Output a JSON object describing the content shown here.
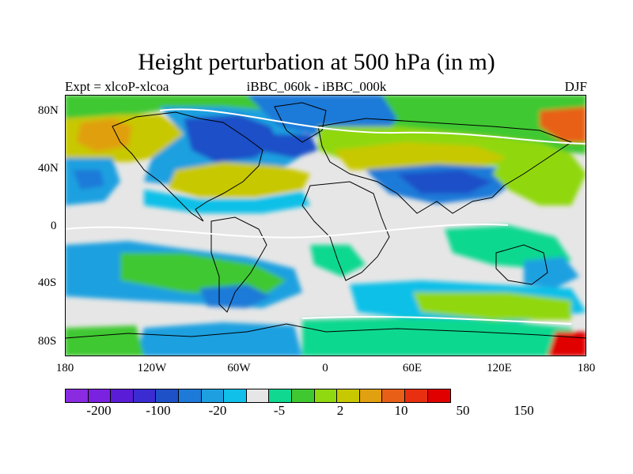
{
  "title": "Height perturbation at 500 hPa (in m)",
  "subtitle_left": "Expt = xlcoP-xlcoa",
  "subtitle_center": "iBBC_060k - iBBC_000k",
  "subtitle_right": "DJF",
  "lat_labels": [
    "80N",
    "40N",
    "0",
    "40S",
    "80S"
  ],
  "lon_labels": [
    "180",
    "120W",
    "60W",
    "0",
    "60E",
    "120E",
    "180"
  ],
  "colorbar": {
    "colors": [
      "#8a2be2",
      "#7a22e0",
      "#5b1cd8",
      "#3a2cd0",
      "#1e50c8",
      "#1e7ad8",
      "#1ea0e0",
      "#10c0e8",
      "#e6e6e6",
      "#10d890",
      "#40c830",
      "#90d810",
      "#c8c800",
      "#e0a010",
      "#e86018",
      "#e83010",
      "#e00000"
    ],
    "labels": [
      "-200",
      "-100",
      "-20",
      "-5",
      "2",
      "10",
      "50",
      "150"
    ]
  },
  "palette": {
    "background": "#e6e6e6",
    "blue_dark": "#1e50c8",
    "blue_mid": "#1e7ad8",
    "blue_light": "#1ea0e0",
    "cyan": "#10c0e8",
    "teal": "#10d890",
    "green": "#40c830",
    "yellow_green": "#90d810",
    "olive": "#c8c800",
    "orange": "#e0a010",
    "dark_orange": "#e86018",
    "red": "#e00000",
    "white": "#ffffff",
    "coast": "#000000"
  }
}
